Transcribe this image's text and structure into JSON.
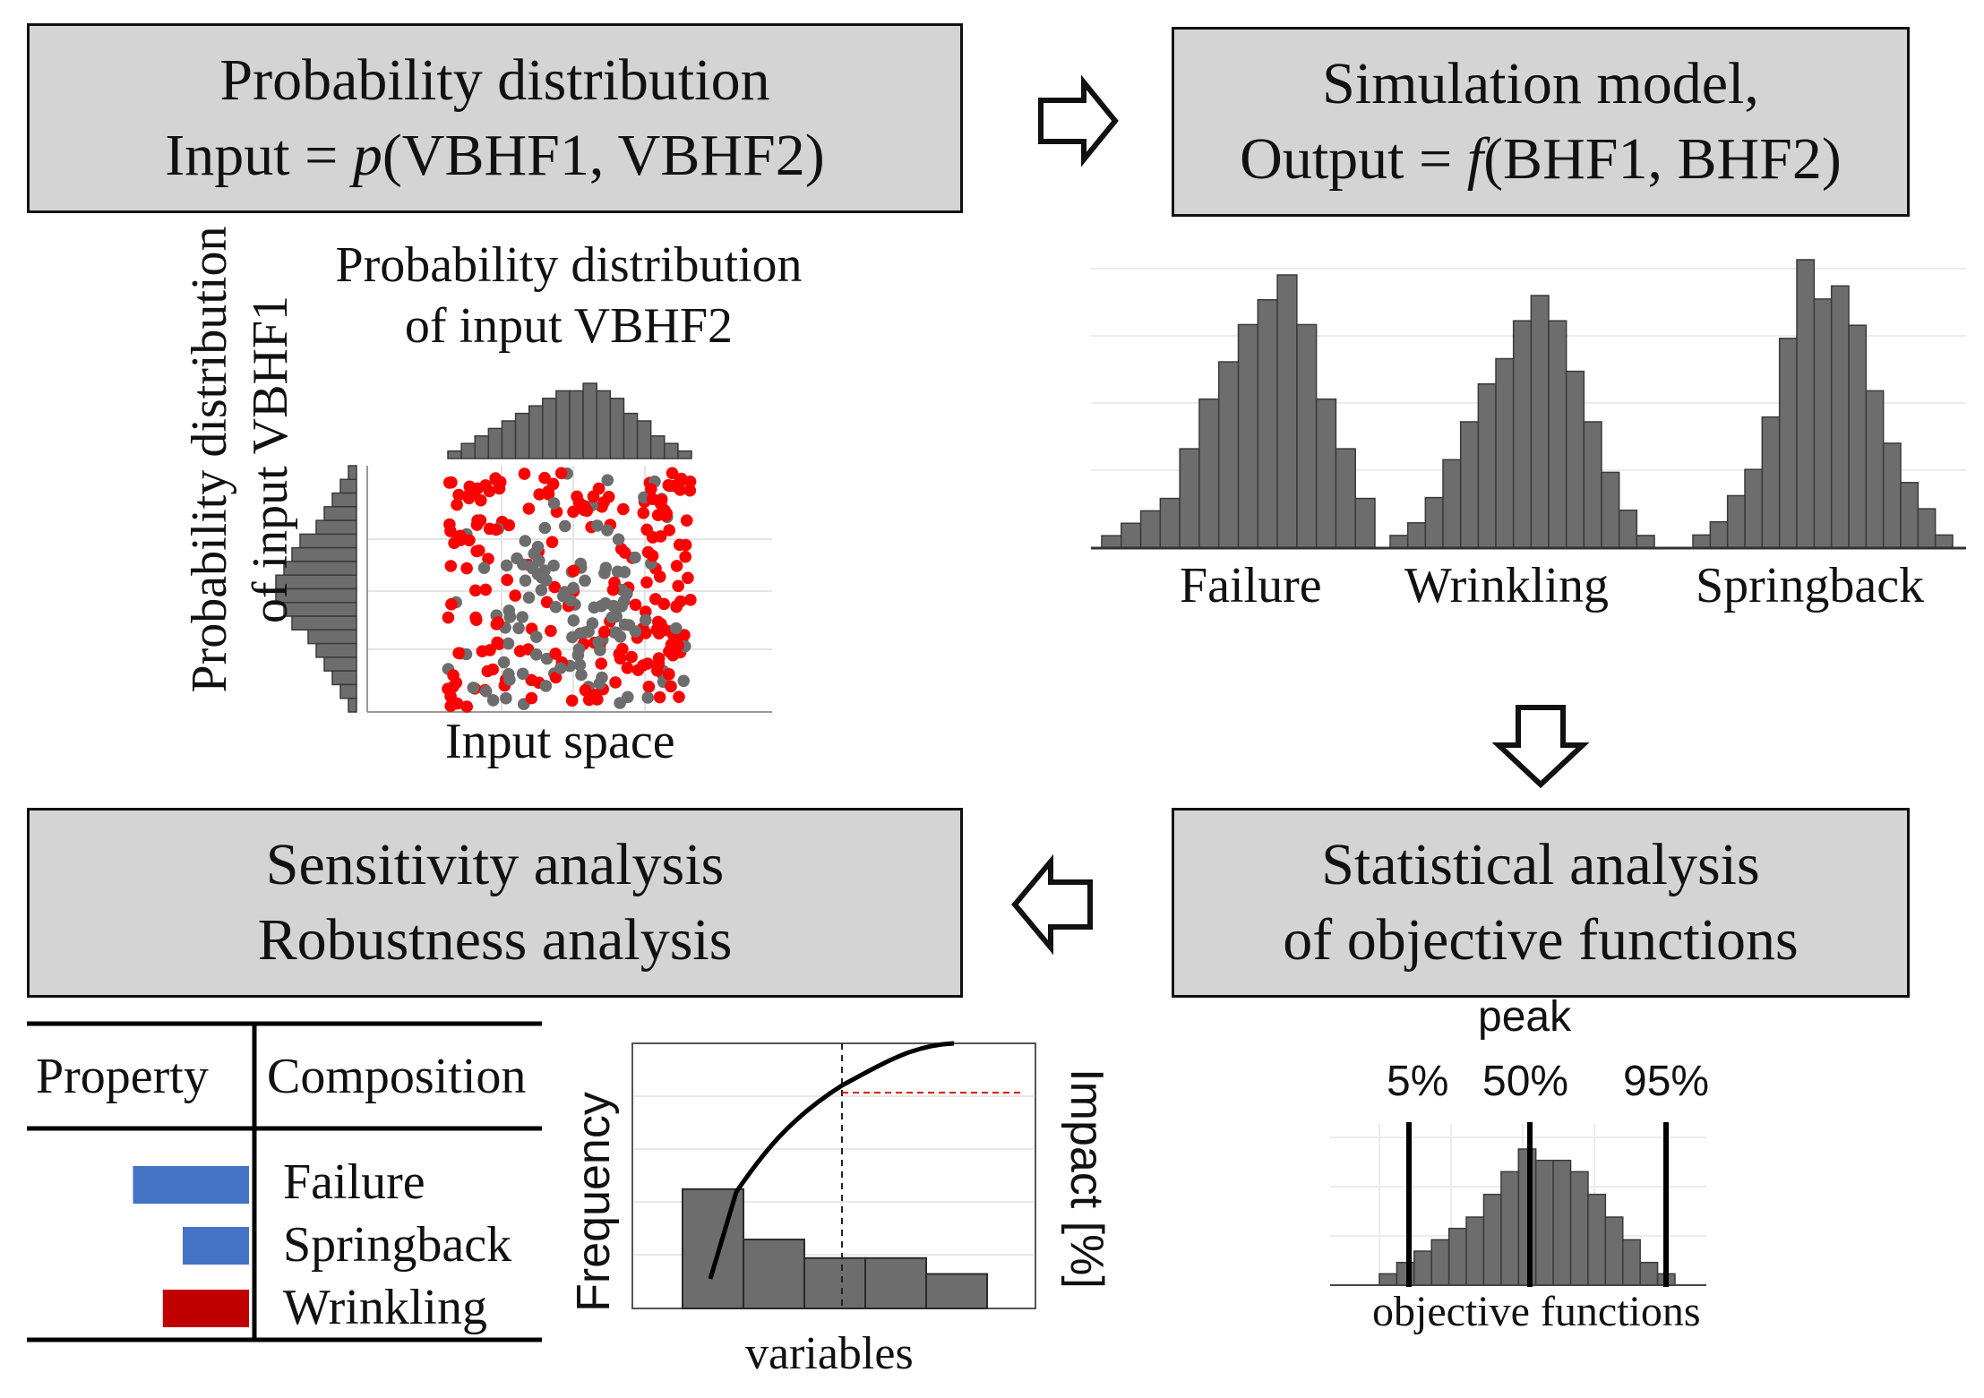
{
  "boxes": {
    "top_left": {
      "line1": "Probability distribution",
      "line2_prefix": "Input = ",
      "line2_func": "p",
      "line2_args": "(VBHF1, VBHF2)"
    },
    "top_right": {
      "line1": "Simulation model,",
      "line2_prefix": "Output = ",
      "line2_func": "f",
      "line2_args": "(BHF1, BHF2)"
    },
    "bottom_left": {
      "line1": "Sensitivity analysis",
      "line2": "Robustness analysis"
    },
    "bottom_right": {
      "line1": "Statistical analysis",
      "line2": "of objective functions"
    }
  },
  "input_panel": {
    "title_line1": "Probability distribution",
    "title_line2": "of input VBHF2",
    "side_line1": "Probability distribution",
    "side_line2": "of input VBHF1",
    "x_label": "Input space",
    "top_hist": [
      1,
      2,
      3,
      4,
      5,
      6,
      7,
      8,
      9,
      9,
      10,
      9,
      8,
      6,
      5,
      3,
      2,
      1
    ],
    "side_hist": [
      1,
      2,
      3,
      4,
      5,
      7,
      8,
      9,
      10,
      10,
      9,
      8,
      6,
      5,
      4,
      3,
      2,
      1
    ]
  },
  "output_panel": {
    "labels": [
      "Failure",
      "Wrinkling",
      "Springback"
    ],
    "hist_failure": [
      1,
      2,
      3,
      4,
      8,
      12,
      15,
      18,
      20,
      22,
      18,
      12,
      8,
      4
    ],
    "hist_wrinkling": [
      1,
      2,
      4,
      7,
      10,
      13,
      15,
      18,
      20,
      18,
      14,
      10,
      6,
      3,
      1
    ],
    "hist_springback": [
      1,
      2,
      4,
      6,
      10,
      16,
      22,
      19,
      20,
      17,
      12,
      8,
      5,
      3,
      1
    ]
  },
  "stats_panel": {
    "peak_label": "peak",
    "p5_label": "5%",
    "p50_label": "50%",
    "p95_label": "95%",
    "x_label": "objective functions",
    "hist": [
      1,
      2,
      3,
      4,
      5,
      6,
      8,
      10,
      12,
      11,
      11,
      10,
      8,
      6,
      4,
      2,
      1
    ]
  },
  "sensitivity_table": {
    "col1": "Property",
    "col2": "Composition",
    "rows": [
      {
        "label": "Failure",
        "value": 0.7,
        "color": "#4472c4"
      },
      {
        "label": "Springback",
        "value": 0.4,
        "color": "#4472c4"
      },
      {
        "label": "Wrinkling",
        "value": 0.52,
        "color": "#c00000"
      }
    ]
  },
  "pareto_chart": {
    "y_left": "Frequency",
    "y_right": "Impact [%]",
    "x_label": "variables",
    "bars": [
      0.45,
      0.26,
      0.19,
      0.19,
      0.13
    ]
  },
  "colors": {
    "box_fill": "#d4d4d4",
    "hist_fill": "#6d6d6d",
    "red_points": "#ff0000",
    "grey_points": "#6d6d6d"
  }
}
